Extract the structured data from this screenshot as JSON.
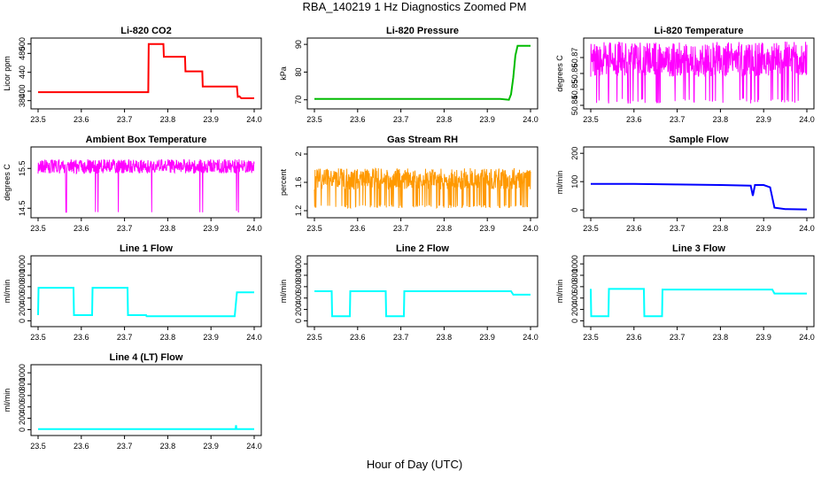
{
  "figure": {
    "title": "RBA_140219  1 Hz Diagnostics Zoomed PM",
    "xlabel": "Hour of Day (UTC)"
  },
  "chart_data": [
    {
      "id": "co2",
      "type": "line",
      "title": "Li-820 CO2",
      "ylabel": "Licor ppm",
      "color": "#ff0000",
      "xlim": [
        23.5,
        24.0
      ],
      "ylim": [
        370,
        505
      ],
      "yticks": [
        380,
        400,
        440,
        480,
        500
      ],
      "xticks": [
        23.5,
        23.6,
        23.7,
        23.8,
        23.9,
        24.0
      ],
      "series": [
        {
          "x": [
            23.5,
            23.755,
            23.756,
            23.79,
            23.791,
            23.84,
            23.841,
            23.88,
            23.881,
            23.96,
            23.962,
            23.966,
            23.97,
            24.0
          ],
          "y": [
            398,
            398,
            500,
            500,
            473,
            473,
            442,
            442,
            410,
            410,
            388,
            389,
            385,
            385
          ]
        }
      ]
    },
    {
      "id": "pressure",
      "type": "line",
      "title": "Li-820 Pressure",
      "ylabel": "kPa",
      "color": "#00bb00",
      "xlim": [
        23.5,
        24.0
      ],
      "ylim": [
        68,
        91
      ],
      "yticks": [
        70,
        80,
        90
      ],
      "xticks": [
        23.5,
        23.6,
        23.7,
        23.8,
        23.9,
        24.0
      ],
      "series": [
        {
          "x": [
            23.5,
            23.93,
            23.95,
            23.955,
            23.96,
            23.965,
            23.97,
            24.0
          ],
          "y": [
            70.3,
            70.3,
            70.0,
            72,
            78,
            86,
            89.5,
            89.5
          ]
        }
      ]
    },
    {
      "id": "li820-temp",
      "type": "line",
      "title": "Li-820 Temperature",
      "ylabel": "degrees C",
      "color": "#ff00ff",
      "xlim": [
        23.5,
        24.0
      ],
      "ylim": [
        50.84,
        50.88
      ],
      "yticks": [
        50.84,
        50.85,
        50.86,
        50.87
      ],
      "xticks": [
        23.5,
        23.6,
        23.7,
        23.8,
        23.9,
        24.0
      ],
      "pattern": "noise",
      "series": [
        {
          "base": 50.869,
          "amp": 0.011,
          "spike": 50.842,
          "spikeRate": 0.08
        }
      ]
    },
    {
      "id": "box-temp",
      "type": "line",
      "title": "Ambient Box Temperature",
      "ylabel": "degrees C",
      "color": "#ff00ff",
      "xlim": [
        23.5,
        24.0
      ],
      "ylim": [
        14.35,
        15.95
      ],
      "yticks": [
        14.5,
        15.5
      ],
      "xticks": [
        23.5,
        23.6,
        23.7,
        23.8,
        23.9,
        24.0
      ],
      "pattern": "noise",
      "series": [
        {
          "base": 15.55,
          "amp": 0.18,
          "spike": 14.4,
          "spikeAt": 23.565,
          "spikeRate": 0.02
        }
      ]
    },
    {
      "id": "rh",
      "type": "line",
      "title": "Gas Stream RH",
      "ylabel": "percent",
      "color": "#ff9900",
      "xlim": [
        23.5,
        24.0
      ],
      "ylim": [
        1.15,
        2.05
      ],
      "yticks": [
        1.2,
        1.6,
        2.0
      ],
      "xticks": [
        23.5,
        23.6,
        23.7,
        23.8,
        23.9,
        24.0
      ],
      "pattern": "noise",
      "series": [
        {
          "base": 1.65,
          "amp": 0.15,
          "spike": 1.25,
          "spikeRate": 0.12
        }
      ]
    },
    {
      "id": "sample-flow",
      "type": "line",
      "title": "Sample Flow",
      "ylabel": "ml/min",
      "color": "#0000ff",
      "xlim": [
        23.5,
        24.0
      ],
      "ylim": [
        -15,
        210
      ],
      "yticks": [
        0,
        100,
        200
      ],
      "xticks": [
        23.5,
        23.6,
        23.7,
        23.8,
        23.9,
        24.0
      ],
      "series": [
        {
          "x": [
            23.5,
            23.6,
            23.7,
            23.8,
            23.87,
            23.875,
            23.88,
            23.9,
            23.915,
            23.925,
            23.95,
            24.0
          ],
          "y": [
            92,
            92,
            90,
            88,
            86,
            50,
            88,
            88,
            80,
            8,
            3,
            2
          ]
        }
      ]
    },
    {
      "id": "line1",
      "type": "line",
      "title": "Line 1 Flow",
      "ylabel": "ml/min",
      "color": "#00ffff",
      "xlim": [
        23.5,
        24.0
      ],
      "ylim": [
        -40,
        1080
      ],
      "yticks": [
        0,
        200,
        400,
        600,
        800,
        1000
      ],
      "xticks": [
        23.5,
        23.6,
        23.7,
        23.8,
        23.9,
        24.0
      ],
      "series": [
        {
          "x": [
            23.5,
            23.501,
            23.582,
            23.583,
            23.625,
            23.626,
            23.707,
            23.708,
            23.75,
            23.751,
            23.955,
            23.96,
            24.0
          ],
          "y": [
            100,
            580,
            580,
            100,
            100,
            580,
            580,
            100,
            100,
            80,
            80,
            500,
            500
          ]
        }
      ]
    },
    {
      "id": "line2",
      "type": "line",
      "title": "Line 2 Flow",
      "ylabel": "ml/min",
      "color": "#00ffff",
      "xlim": [
        23.5,
        24.0
      ],
      "ylim": [
        -40,
        1080
      ],
      "yticks": [
        0,
        200,
        400,
        600,
        800,
        1000
      ],
      "xticks": [
        23.5,
        23.6,
        23.7,
        23.8,
        23.9,
        24.0
      ],
      "series": [
        {
          "x": [
            23.5,
            23.54,
            23.541,
            23.582,
            23.583,
            23.665,
            23.666,
            23.707,
            23.708,
            23.955,
            23.96,
            24.0
          ],
          "y": [
            520,
            520,
            80,
            80,
            520,
            520,
            80,
            80,
            520,
            520,
            460,
            460
          ]
        }
      ]
    },
    {
      "id": "line3",
      "type": "line",
      "title": "Line 3 Flow",
      "ylabel": "ml/min",
      "color": "#00ffff",
      "xlim": [
        23.5,
        24.0
      ],
      "ylim": [
        -40,
        1080
      ],
      "yticks": [
        0,
        200,
        400,
        600,
        800,
        1000
      ],
      "xticks": [
        23.5,
        23.6,
        23.7,
        23.8,
        23.9,
        24.0
      ],
      "series": [
        {
          "x": [
            23.5,
            23.501,
            23.541,
            23.542,
            23.623,
            23.624,
            23.665,
            23.666,
            23.92,
            23.925,
            24.0
          ],
          "y": [
            560,
            80,
            80,
            560,
            560,
            80,
            80,
            550,
            550,
            480,
            480
          ]
        }
      ]
    },
    {
      "id": "line4",
      "type": "line",
      "title": "Line 4 (LT) Flow",
      "ylabel": "ml/min",
      "color": "#00ffff",
      "xlim": [
        23.5,
        24.0
      ],
      "ylim": [
        -40,
        1080
      ],
      "yticks": [
        0,
        200,
        400,
        600,
        800,
        1000
      ],
      "xticks": [
        23.5,
        23.6,
        23.7,
        23.8,
        23.9,
        24.0
      ],
      "series": [
        {
          "x": [
            23.5,
            23.957,
            23.958,
            23.959,
            23.96,
            24.0
          ],
          "y": [
            10,
            10,
            80,
            10,
            10,
            10
          ]
        }
      ]
    }
  ]
}
